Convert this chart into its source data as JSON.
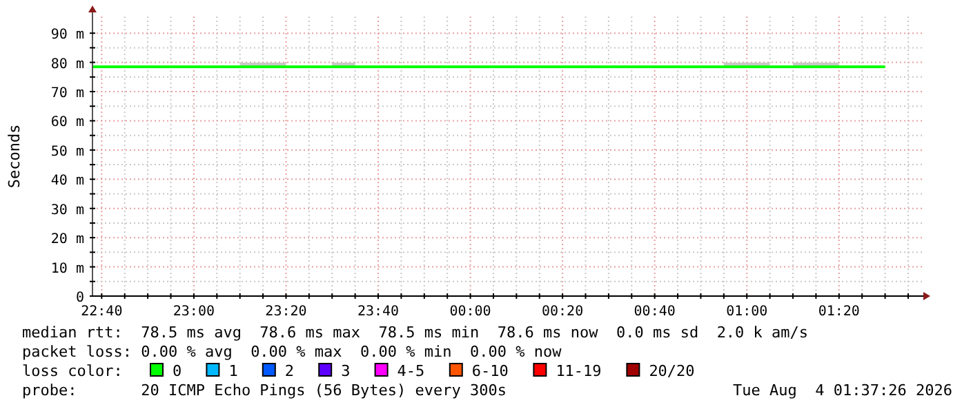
{
  "chart_data": {
    "type": "line",
    "ylabel": "Seconds",
    "legend_title": "loss color:",
    "legend": "bottom",
    "grid": true,
    "xlim": [
      "2026-08-03T22:38",
      "2026-08-04T01:38"
    ],
    "ylim": [
      0,
      95.7
    ],
    "xticks": [
      {
        "value": "2026-08-03T22:40",
        "label": "22:40"
      },
      {
        "value": "2026-08-03T22:45",
        "label": null
      },
      {
        "value": "2026-08-03T22:50",
        "label": null
      },
      {
        "value": "2026-08-03T22:55",
        "label": null
      },
      {
        "value": "2026-08-03T23:00",
        "label": "23:00"
      },
      {
        "value": "2026-08-03T23:05",
        "label": null
      },
      {
        "value": "2026-08-03T23:10",
        "label": null
      },
      {
        "value": "2026-08-03T23:15",
        "label": null
      },
      {
        "value": "2026-08-03T23:20",
        "label": "23:20"
      },
      {
        "value": "2026-08-03T23:25",
        "label": null
      },
      {
        "value": "2026-08-03T23:30",
        "label": null
      },
      {
        "value": "2026-08-03T23:35",
        "label": null
      },
      {
        "value": "2026-08-03T23:40",
        "label": "23:40"
      },
      {
        "value": "2026-08-03T23:45",
        "label": null
      },
      {
        "value": "2026-08-03T23:50",
        "label": null
      },
      {
        "value": "2026-08-03T23:55",
        "label": null
      },
      {
        "value": "2026-08-04T00:00",
        "label": "00:00"
      },
      {
        "value": "2026-08-04T00:05",
        "label": null
      },
      {
        "value": "2026-08-04T00:10",
        "label": null
      },
      {
        "value": "2026-08-04T00:15",
        "label": null
      },
      {
        "value": "2026-08-04T00:20",
        "label": "00:20"
      },
      {
        "value": "2026-08-04T00:25",
        "label": null
      },
      {
        "value": "2026-08-04T00:30",
        "label": null
      },
      {
        "value": "2026-08-04T00:35",
        "label": null
      },
      {
        "value": "2026-08-04T00:40",
        "label": "00:40"
      },
      {
        "value": "2026-08-04T00:45",
        "label": null
      },
      {
        "value": "2026-08-04T00:50",
        "label": null
      },
      {
        "value": "2026-08-04T00:55",
        "label": null
      },
      {
        "value": "2026-08-04T01:00",
        "label": "01:00"
      },
      {
        "value": "2026-08-04T01:05",
        "label": null
      },
      {
        "value": "2026-08-04T01:10",
        "label": null
      },
      {
        "value": "2026-08-04T01:15",
        "label": null
      },
      {
        "value": "2026-08-04T01:20",
        "label": "01:20"
      },
      {
        "value": "2026-08-04T01:25",
        "label": null
      },
      {
        "value": "2026-08-04T01:30",
        "label": null
      },
      {
        "value": "2026-08-04T01:35",
        "label": null
      }
    ],
    "yticks": [
      {
        "value": 0,
        "label": "0"
      },
      {
        "value": 5,
        "label": null
      },
      {
        "value": 10,
        "label": "10 m"
      },
      {
        "value": 15,
        "label": null
      },
      {
        "value": 20,
        "label": "20 m"
      },
      {
        "value": 25,
        "label": null
      },
      {
        "value": 30,
        "label": "30 m"
      },
      {
        "value": 35,
        "label": null
      },
      {
        "value": 40,
        "label": "40 m"
      },
      {
        "value": 45,
        "label": null
      },
      {
        "value": 50,
        "label": "50 m"
      },
      {
        "value": 55,
        "label": null
      },
      {
        "value": 60,
        "label": "60 m"
      },
      {
        "value": 65,
        "label": null
      },
      {
        "value": 70,
        "label": "70 m"
      },
      {
        "value": 75,
        "label": null
      },
      {
        "value": 80,
        "label": "80 m"
      },
      {
        "value": 85,
        "label": null
      },
      {
        "value": 90,
        "label": "90 m"
      }
    ],
    "series": [
      {
        "name": "0",
        "color": "#00ff00",
        "x": [
          "2026-08-03T22:38",
          "2026-08-03T23:10",
          "2026-08-03T23:20",
          "2026-08-03T23:24",
          "2026-08-03T23:30",
          "2026-08-03T23:35",
          "2026-08-03T23:39",
          "2026-08-04T00:55",
          "2026-08-04T01:05",
          "2026-08-04T01:07",
          "2026-08-04T01:10",
          "2026-08-04T01:20",
          "2026-08-04T01:24",
          "2026-08-04T01:30"
        ],
        "values": [
          78.5,
          78.5,
          78.5,
          78.5,
          78.5,
          78.5,
          78.5,
          78.5,
          78.5,
          78.5,
          78.5,
          78.5,
          78.5,
          78.5
        ],
        "lower": [
          null,
          78.5,
          78.5,
          null,
          78.5,
          78.5,
          null,
          78.5,
          78.5,
          null,
          78.5,
          78.5,
          null,
          null
        ],
        "upper": [
          null,
          79.9,
          79.9,
          null,
          79.9,
          79.9,
          null,
          79.9,
          79.9,
          null,
          79.9,
          79.9,
          null,
          null
        ]
      },
      {
        "name": "1",
        "color": "#00b8ff"
      },
      {
        "name": "2",
        "color": "#0059ff"
      },
      {
        "name": "3",
        "color": "#5e00ff"
      },
      {
        "name": "4-5",
        "color": "#ff00ff"
      },
      {
        "name": "6-10",
        "color": "#ff5500"
      },
      {
        "name": "11-19",
        "color": "#ff0000"
      },
      {
        "name": "20/20",
        "color": "#a10000"
      }
    ],
    "annotations": [
      "median rtt:  78.5 ms avg  78.6 ms max  78.5 ms min  78.6 ms now  0.0 ms sd  2.0 k am/s",
      "packet loss: 0.00 % avg  0.00 % max  0.00 % min  0.00 % now",
      "probe:       20 ICMP Echo Pings (56 Bytes) every 300s",
      "Tue Aug  4 01:37:26 2026"
    ]
  }
}
